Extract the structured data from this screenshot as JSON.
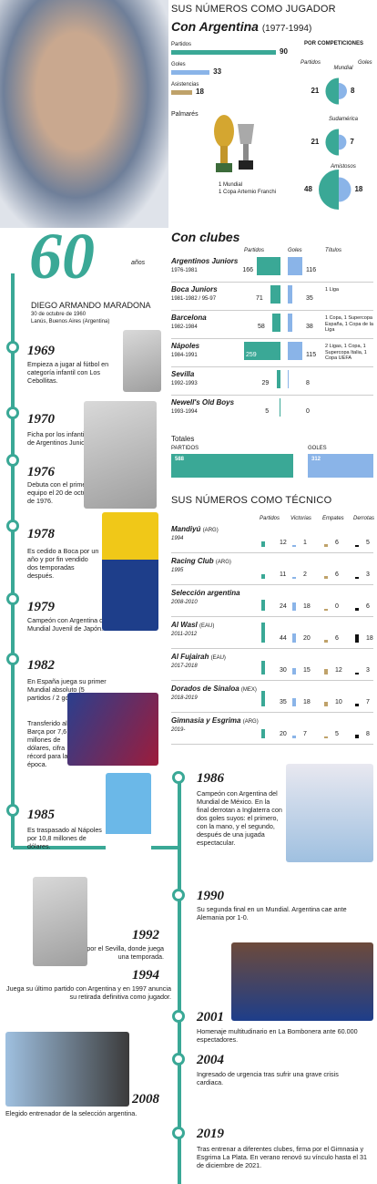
{
  "header": {
    "title": "SUS NÚMEROS COMO JUGADOR",
    "subtitle": "Con Argentina",
    "subtitle_years": "(1977-1994)"
  },
  "argentina": {
    "stats": [
      {
        "label": "Partidos",
        "value": 90
      },
      {
        "label": "Goles",
        "value": 33
      },
      {
        "label": "Asistencias",
        "value": 18
      }
    ],
    "por_competiciones": "POR COMPETICIONES",
    "col_partidos": "Partidos",
    "col_goles": "Goles",
    "competitions": [
      {
        "name": "Mundial",
        "partidos": 21,
        "goles": 8
      },
      {
        "name": "Sudamérica",
        "partidos": 21,
        "goles": 7
      },
      {
        "name": "Amistosos",
        "partidos": 48,
        "goles": 18
      }
    ],
    "palmares_label": "Palmarés",
    "palmares_1": "1 Mundial",
    "palmares_2": "1 Copa Artemio Franchi"
  },
  "age": {
    "number": "60",
    "suffix": "años"
  },
  "bio": {
    "name": "DIEGO ARMANDO MARADONA",
    "born": "30 de octubre de 1960",
    "place": "Lanús, Buenos Aires (Argentina)"
  },
  "clubs": {
    "title": "Con clubes",
    "col_partidos": "Partidos",
    "col_goles": "Goles",
    "col_titulos": "Títulos",
    "rows": [
      {
        "name": "Argentinos Juniors",
        "years": "1976-1981",
        "partidos": 166,
        "goles": 116,
        "titulos": ""
      },
      {
        "name": "Boca Juniors",
        "years": "1981-1982 / 95-97",
        "partidos": 71,
        "goles": 35,
        "titulos": "1 Liga"
      },
      {
        "name": "Barcelona",
        "years": "1982-1984",
        "partidos": 58,
        "goles": 38,
        "titulos": "1 Copa, 1 Supercopa España, 1 Copa de la Liga"
      },
      {
        "name": "Nápoles",
        "years": "1984-1991",
        "partidos": 259,
        "goles": 115,
        "titulos": "2 Ligas, 1 Copa, 1 Supercopa Italia, 1 Copa UEFA"
      },
      {
        "name": "Sevilla",
        "years": "1992-1993",
        "partidos": 29,
        "goles": 8,
        "titulos": ""
      },
      {
        "name": "Newell's Old Boys",
        "years": "1993-1994",
        "partidos": 5,
        "goles": 0,
        "titulos": ""
      }
    ],
    "totales_label": "Totales",
    "totales_partidos_label": "PARTIDOS",
    "totales_goles_label": "GOLES",
    "totales_partidos": 588,
    "totales_goles": 312
  },
  "coach": {
    "title": "SUS NÚMEROS COMO TÉCNICO",
    "cols": [
      "Partidos",
      "Victorias",
      "Empates",
      "Derrotas"
    ],
    "rows": [
      {
        "team": "Mandiyú",
        "country": "(ARG)",
        "years": "1994",
        "p": 12,
        "v": 1,
        "e": 6,
        "d": 5
      },
      {
        "team": "Racing Club",
        "country": "(ARG)",
        "years": "1995",
        "p": 11,
        "v": 2,
        "e": 6,
        "d": 3
      },
      {
        "team": "Selección argentina",
        "country": "",
        "years": "2008-2010",
        "p": 24,
        "v": 18,
        "e": 0,
        "d": 6
      },
      {
        "team": "Al Wasl",
        "country": "(EAU)",
        "years": "2011-2012",
        "p": 44,
        "v": 20,
        "e": 6,
        "d": 18
      },
      {
        "team": "Al Fujairah",
        "country": "(EAU)",
        "years": "2017-2018",
        "p": 30,
        "v": 15,
        "e": 12,
        "d": 3
      },
      {
        "team": "Dorados de Sinaloa",
        "country": "(MEX)",
        "years": "2018-2019",
        "p": 35,
        "v": 18,
        "e": 10,
        "d": 7
      },
      {
        "team": "Gimnasia y Esgrima",
        "country": "(ARG)",
        "years": "2019-",
        "p": 20,
        "v": 7,
        "e": 5,
        "d": 8
      }
    ]
  },
  "timeline": [
    {
      "year": "1969",
      "text": "Empieza a jugar al fútbol en categoría infantil con Los Cebollitas."
    },
    {
      "year": "1970",
      "text": "Ficha por los infantiles de Argentinos Juniors."
    },
    {
      "year": "1976",
      "text": "Debuta con el primer equipo el 20 de octubre de 1976."
    },
    {
      "year": "1978",
      "text": "Es cedido a Boca por un año y por fin vendido dos temporadas después."
    },
    {
      "year": "1979",
      "text": "Campeón con Argentina del Mundial Juvenil de Japón."
    },
    {
      "year": "1982",
      "text": "En España juega su primer Mundial absoluto (5 partidos / 2 goles",
      "text2": "Transferido al Barça por 7,6 millones de dólares, cifra récord para la época."
    },
    {
      "year": "1985",
      "text": "Es traspasado al Nápoles por 10,8 millones de dólares."
    },
    {
      "year": "1986",
      "text": "Campeón con Argentina del Mundial de México. En la final derrotan a Inglaterra con dos goles suyos: el primero, con la mano, y el segundo, después de una jugada espectacular."
    },
    {
      "year": "1990",
      "text": "Su segunda final en un Mundial. Argentina cae ante Alemania por 1-0."
    },
    {
      "year": "1992",
      "text": "Ficha por el Sevilla, donde juega una temporada."
    },
    {
      "year": "1994",
      "text": "Juega su último partido con Argentina y en 1997 anuncia su retirada definitiva como jugador."
    },
    {
      "year": "2001",
      "text": "Homenaje multitudinario en La Bombonera ante 60.000 espectadores."
    },
    {
      "year": "2004",
      "text": "Ingresado de urgencia tras sufrir una grave crisis cardiaca."
    },
    {
      "year": "2008",
      "text": "Elegido entrenador de la selección argentina."
    },
    {
      "year": "2019",
      "text": "Tras entrenar a diferentes clubes, firma por el Gimnasia y Esgrima La Plata. En verano renovó su vínculo hasta el 31 de diciembre de 2021."
    }
  ],
  "colors": {
    "teal": "#3aa896",
    "blue": "#8ab4e8",
    "gold": "#bfa26a",
    "black": "#111111"
  },
  "chart_data": [
    {
      "type": "bar",
      "categories": [
        "Partidos",
        "Goles",
        "Asistencias"
      ],
      "values": [
        90,
        33,
        18
      ]
    },
    {
      "type": "pie",
      "categories": [
        "Mundial",
        "Sudamérica",
        "Amistosos"
      ],
      "series": [
        {
          "name": "Partidos",
          "values": [
            21,
            21,
            48
          ]
        },
        {
          "name": "Goles",
          "values": [
            8,
            7,
            18
          ]
        }
      ]
    },
    {
      "type": "bar",
      "categories": [
        "Argentinos Juniors",
        "Boca Juniors",
        "Barcelona",
        "Nápoles",
        "Sevilla",
        "Newell's Old Boys"
      ],
      "series": [
        {
          "name": "Partidos",
          "values": [
            166,
            71,
            58,
            259,
            29,
            5
          ]
        },
        {
          "name": "Goles",
          "values": [
            116,
            35,
            38,
            115,
            8,
            0
          ]
        }
      ]
    },
    {
      "type": "bar",
      "categories": [
        "Mandiyú",
        "Racing Club",
        "Selección argentina",
        "Al Wasl",
        "Al Fujairah",
        "Dorados de Sinaloa",
        "Gimnasia y Esgrima"
      ],
      "series": [
        {
          "name": "Partidos",
          "values": [
            12,
            11,
            24,
            44,
            30,
            35,
            20
          ]
        },
        {
          "name": "Victorias",
          "values": [
            1,
            2,
            18,
            20,
            15,
            18,
            7
          ]
        },
        {
          "name": "Empates",
          "values": [
            6,
            6,
            0,
            6,
            12,
            10,
            5
          ]
        },
        {
          "name": "Derrotas",
          "values": [
            5,
            3,
            6,
            18,
            3,
            7,
            8
          ]
        }
      ]
    }
  ]
}
